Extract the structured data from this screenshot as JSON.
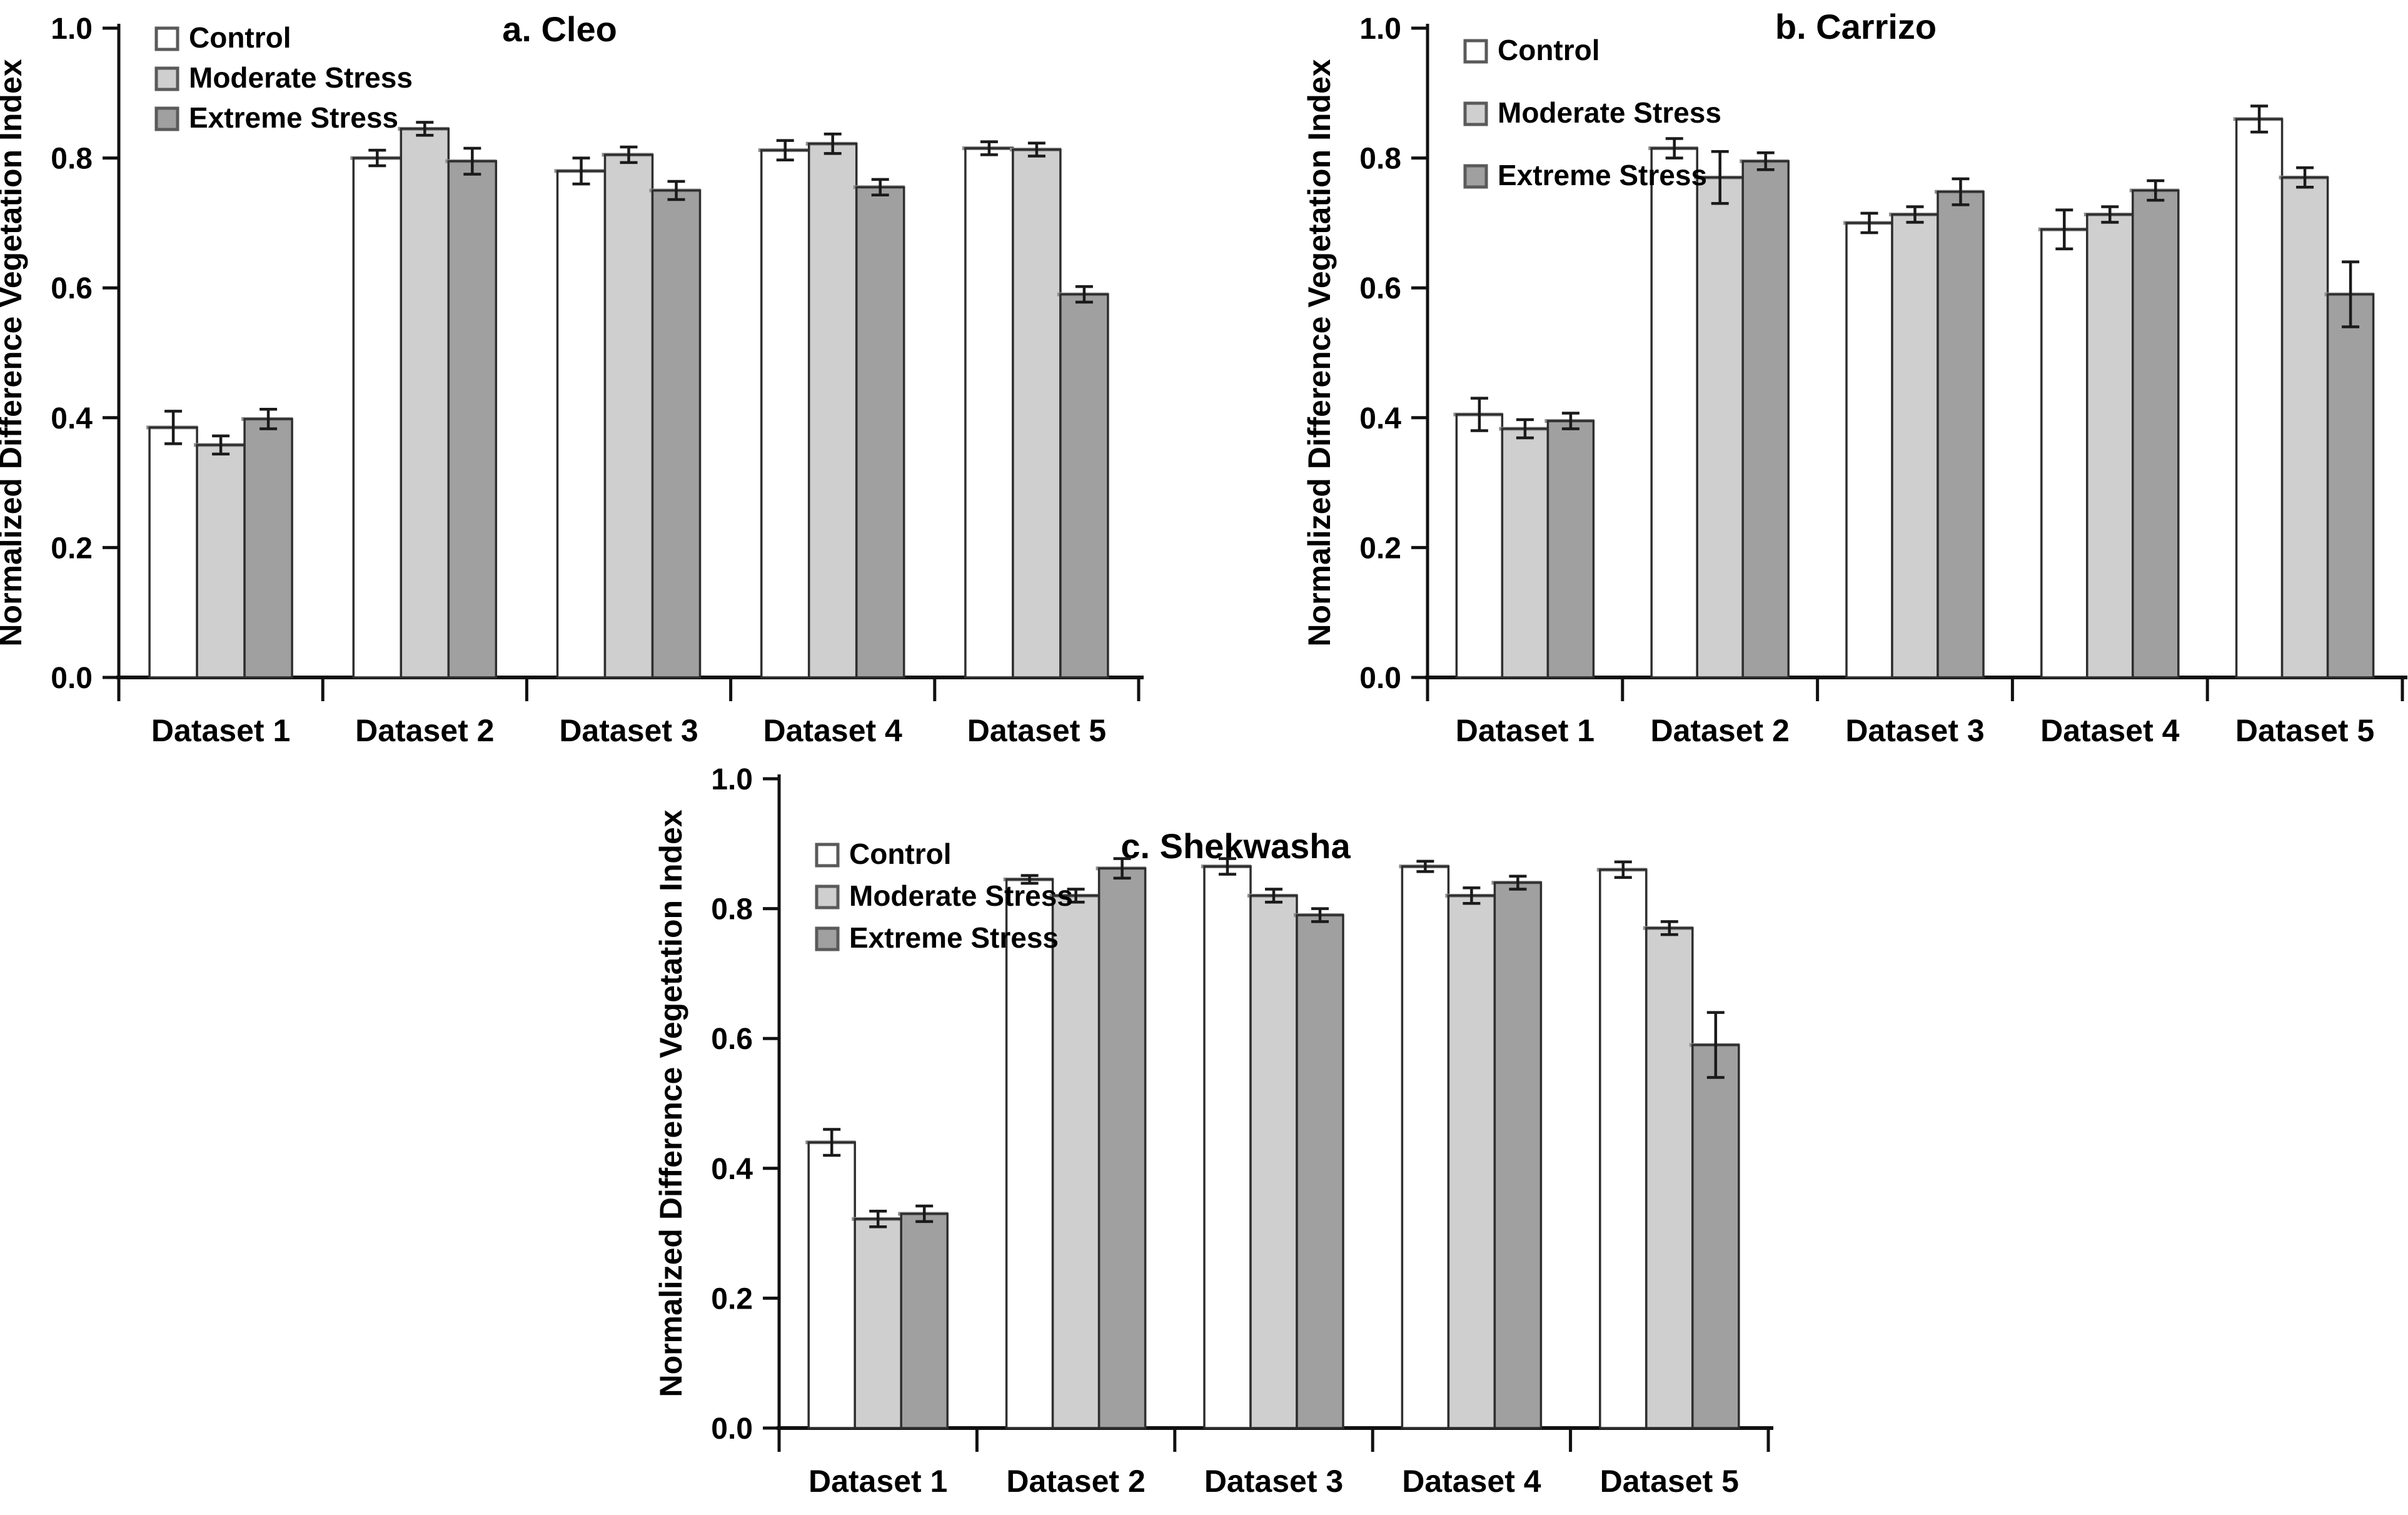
{
  "figure": {
    "y_axis_label": "Normalized Difference Vegetation Index",
    "y_tick_labels": [
      "0.0",
      "0.2",
      "0.4",
      "0.6",
      "0.8",
      "1.0"
    ],
    "categories": [
      "Dataset 1",
      "Dataset 2",
      "Dataset 3",
      "Dataset 4",
      "Dataset 5"
    ],
    "legend_labels": [
      "Control",
      "Moderate Stress",
      "Extreme Stress"
    ],
    "colors": {
      "control_fill": "#ffffff",
      "moderate_fill": "#cfcfcf",
      "extreme_fill": "#a0a0a0",
      "bar_outline": "#2e2e2e",
      "bar_top_cap": "#8f8f8f",
      "axis": "#111111",
      "error_bar": "#1a1a1a",
      "text": "#000000",
      "background": "#ffffff"
    }
  },
  "chart_data": [
    {
      "type": "bar",
      "title": "a. Cleo",
      "xlabel": "",
      "ylabel": "Normalized Difference Vegetation Index",
      "ylim": [
        0.0,
        1.0
      ],
      "ytick_step": 0.2,
      "grid": false,
      "legend_position": "top-left-inside",
      "error_bars": true,
      "categories": [
        "Dataset 1",
        "Dataset 2",
        "Dataset 3",
        "Dataset 4",
        "Dataset 5"
      ],
      "series": [
        {
          "name": "Control",
          "fill": "#ffffff",
          "values": [
            0.385,
            0.8,
            0.78,
            0.812,
            0.815
          ],
          "errors": [
            0.025,
            0.012,
            0.02,
            0.015,
            0.01
          ]
        },
        {
          "name": "Moderate Stress",
          "fill": "#cfcfcf",
          "values": [
            0.358,
            0.845,
            0.805,
            0.822,
            0.813
          ],
          "errors": [
            0.014,
            0.01,
            0.012,
            0.015,
            0.01
          ]
        },
        {
          "name": "Extreme Stress",
          "fill": "#a0a0a0",
          "values": [
            0.398,
            0.795,
            0.75,
            0.755,
            0.59
          ],
          "errors": [
            0.015,
            0.02,
            0.014,
            0.012,
            0.012
          ]
        }
      ]
    },
    {
      "type": "bar",
      "title": "b. Carrizo",
      "xlabel": "",
      "ylabel": "Normalized Difference Vegetation Index",
      "ylim": [
        0.0,
        1.0
      ],
      "ytick_step": 0.2,
      "grid": false,
      "legend_position": "top-left-inside",
      "error_bars": true,
      "categories": [
        "Dataset 1",
        "Dataset 2",
        "Dataset 3",
        "Dataset 4",
        "Dataset 5"
      ],
      "series": [
        {
          "name": "Control",
          "fill": "#ffffff",
          "values": [
            0.405,
            0.815,
            0.7,
            0.69,
            0.86
          ],
          "errors": [
            0.025,
            0.015,
            0.015,
            0.03,
            0.02
          ]
        },
        {
          "name": "Moderate Stress",
          "fill": "#cfcfcf",
          "values": [
            0.383,
            0.77,
            0.713,
            0.713,
            0.77
          ],
          "errors": [
            0.014,
            0.04,
            0.012,
            0.012,
            0.015
          ]
        },
        {
          "name": "Extreme Stress",
          "fill": "#a0a0a0",
          "values": [
            0.395,
            0.795,
            0.748,
            0.75,
            0.59
          ],
          "errors": [
            0.012,
            0.013,
            0.02,
            0.015,
            0.05
          ]
        }
      ]
    },
    {
      "type": "bar",
      "title": "c. Shekwasha",
      "xlabel": "",
      "ylabel": "Normalized Difference Vegetation Index",
      "ylim": [
        0.0,
        1.0
      ],
      "ytick_step": 0.2,
      "grid": false,
      "legend_position": "top-left-inside",
      "error_bars": true,
      "categories": [
        "Dataset 1",
        "Dataset 2",
        "Dataset 3",
        "Dataset 4",
        "Dataset 5"
      ],
      "series": [
        {
          "name": "Control",
          "fill": "#ffffff",
          "values": [
            0.44,
            0.845,
            0.865,
            0.865,
            0.86
          ],
          "errors": [
            0.02,
            0.006,
            0.012,
            0.008,
            0.012
          ]
        },
        {
          "name": "Moderate Stress",
          "fill": "#cfcfcf",
          "values": [
            0.322,
            0.82,
            0.82,
            0.82,
            0.77
          ],
          "errors": [
            0.012,
            0.01,
            0.01,
            0.012,
            0.01
          ]
        },
        {
          "name": "Extreme Stress",
          "fill": "#a0a0a0",
          "values": [
            0.33,
            0.862,
            0.79,
            0.84,
            0.59
          ],
          "errors": [
            0.012,
            0.015,
            0.01,
            0.01,
            0.05
          ]
        }
      ]
    }
  ]
}
